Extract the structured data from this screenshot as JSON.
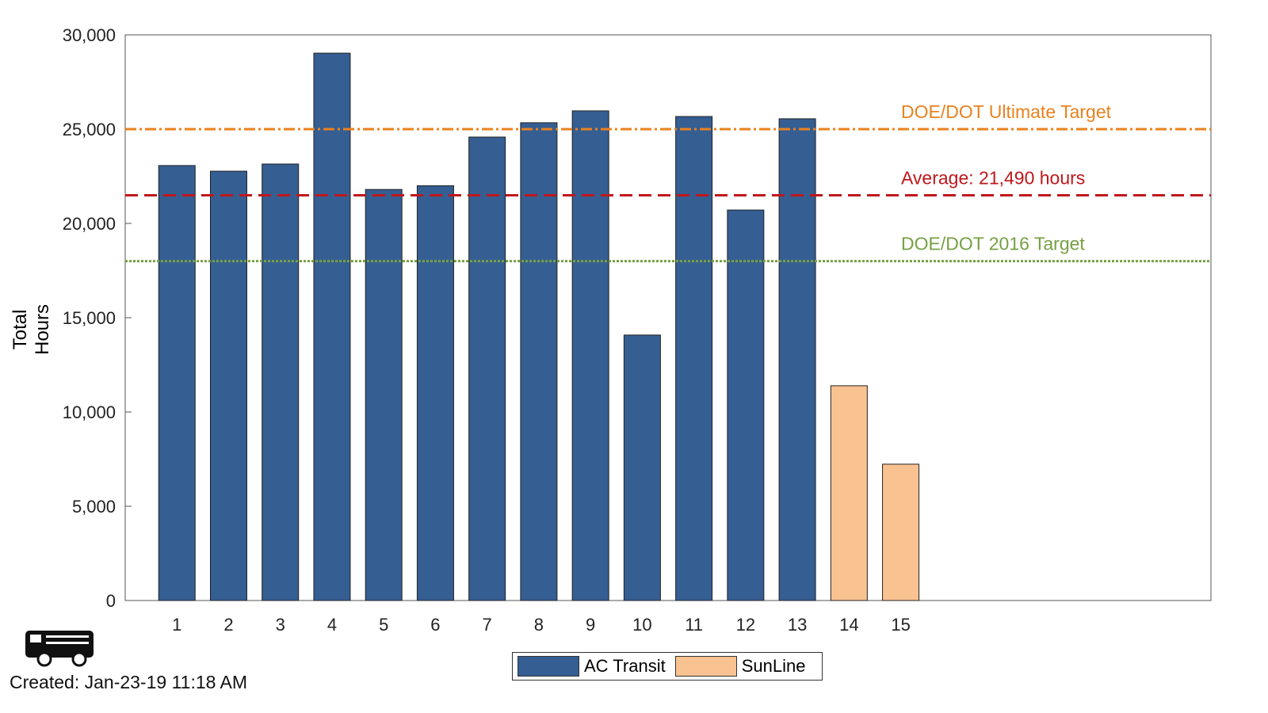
{
  "chart_data": {
    "type": "bar",
    "title": "",
    "xlabel": "",
    "ylabel": "Total Hours",
    "ylim": [
      0,
      30000
    ],
    "xlim": [
      0,
      21
    ],
    "yticks": [
      "0",
      "5,000",
      "10,000",
      "15,000",
      "20,000",
      "25,000",
      "30,000"
    ],
    "ytick_values": [
      0,
      5000,
      10000,
      15000,
      20000,
      25000,
      30000
    ],
    "categories": [
      "1",
      "2",
      "3",
      "4",
      "5",
      "6",
      "7",
      "8",
      "9",
      "10",
      "11",
      "12",
      "13",
      "14",
      "15"
    ],
    "values": [
      23070,
      22770,
      23150,
      29030,
      21800,
      22000,
      24580,
      25340,
      25970,
      14080,
      25670,
      20710,
      25550,
      11390,
      7230
    ],
    "bar_series": [
      "AC Transit",
      "AC Transit",
      "AC Transit",
      "AC Transit",
      "AC Transit",
      "AC Transit",
      "AC Transit",
      "AC Transit",
      "AC Transit",
      "AC Transit",
      "AC Transit",
      "AC Transit",
      "AC Transit",
      "SunLine",
      "SunLine"
    ],
    "legend": [
      {
        "name": "AC Transit",
        "color": "#355e92"
      },
      {
        "name": "SunLine",
        "color": "#f9c291"
      }
    ],
    "legend_placement": "bottom",
    "reference_lines": [
      {
        "label": "DOE/DOT Ultimate Target",
        "value": 25000,
        "color": "#e8821e",
        "style": "dashdot"
      },
      {
        "label": "Average: 21,490 hours",
        "value": 21490,
        "color": "#c0171c",
        "style": "dashed"
      },
      {
        "label": "DOE/DOT 2016 Target",
        "value": 18000,
        "color": "#77a043",
        "style": "dotted"
      }
    ],
    "grid": false
  },
  "footer": {
    "created": "Created: Jan-23-19 11:18 AM"
  }
}
